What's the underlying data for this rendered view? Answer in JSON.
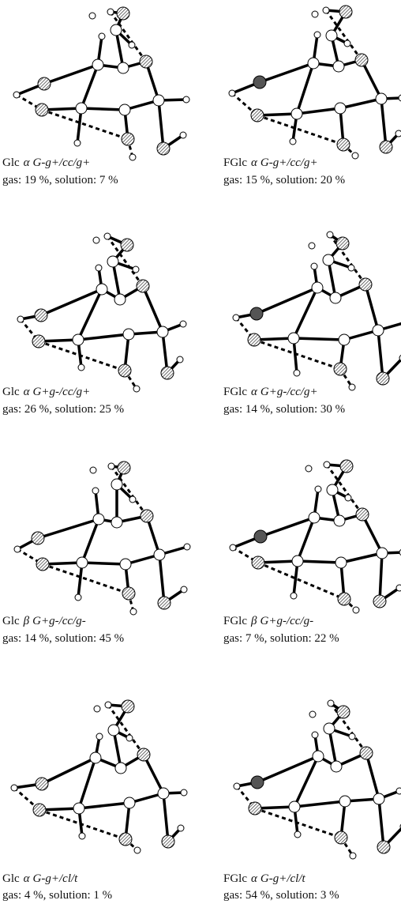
{
  "panels": [
    {
      "name": "Glc",
      "anomer": "α",
      "conformer": "G-g+/cc/g+",
      "populations": "gas: 19 %, solution: 7 %"
    },
    {
      "name": "FGlc",
      "anomer": "α",
      "conformer": "G-g+/cc/g+",
      "populations": "gas: 15 %, solution: 20 %"
    },
    {
      "name": "Glc",
      "anomer": "α",
      "conformer": "G+g-/cc/g+",
      "populations": "gas: 26 %, solution: 25 %"
    },
    {
      "name": "FGlc",
      "anomer": "α",
      "conformer": "G+g-/cc/g+",
      "populations": "gas: 14 %, solution: 30 %"
    },
    {
      "name": "Glc",
      "anomer": "β",
      "conformer": "G+g-/cc/g-",
      "populations": "gas: 14 %, solution: 45 %"
    },
    {
      "name": "FGlc",
      "anomer": "β",
      "conformer": "G+g-/cc/g-",
      "populations": "gas: 7 %, solution: 22 %"
    },
    {
      "name": "Glc",
      "anomer": "α",
      "conformer": "G-g+/cl/t",
      "populations": "gas: 4 %, solution: 1 %"
    },
    {
      "name": "FGlc",
      "anomer": "α",
      "conformer": "G-g+/cl/t",
      "populations": "gas: 54 %, solution: 3 %"
    }
  ]
}
